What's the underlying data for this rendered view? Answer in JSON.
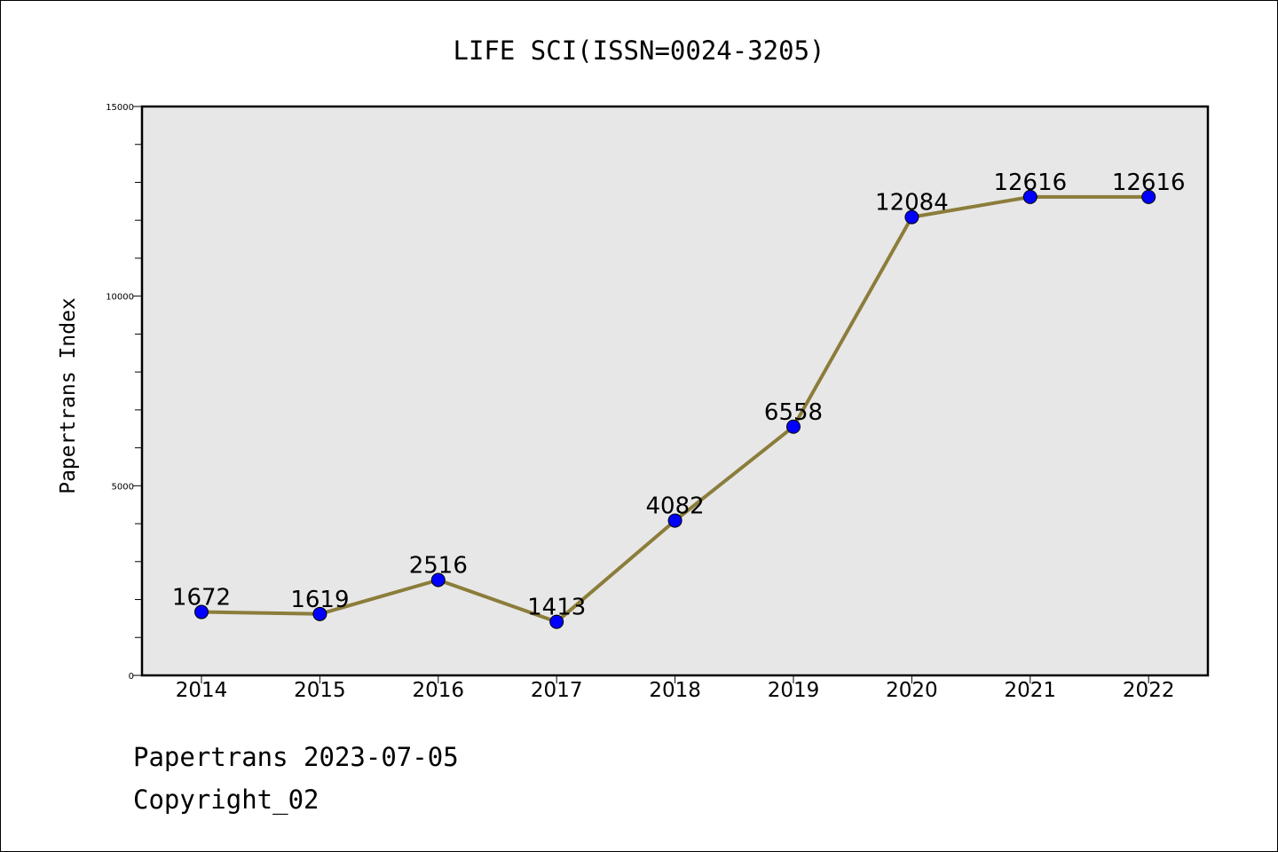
{
  "chart_data": {
    "type": "line",
    "title": "LIFE SCI(ISSN=0024-3205)",
    "xlabel": "",
    "ylabel": "Papertrans Index",
    "categories": [
      "2014",
      "2015",
      "2016",
      "2017",
      "2018",
      "2019",
      "2020",
      "2021",
      "2022"
    ],
    "values": [
      1672,
      1619,
      2516,
      1413,
      4082,
      6558,
      12084,
      12616,
      12616
    ],
    "ylim": [
      0,
      15000
    ],
    "yticks": [
      0,
      5000,
      10000,
      15000
    ],
    "grid": false,
    "legend": "none",
    "line_color": "#8b7d3a",
    "marker_color": "#0000ff",
    "plot_background": "#e7e7e7"
  },
  "footer": {
    "date_line": "Papertrans 2023-07-05",
    "copyright": "Copyright_02"
  }
}
